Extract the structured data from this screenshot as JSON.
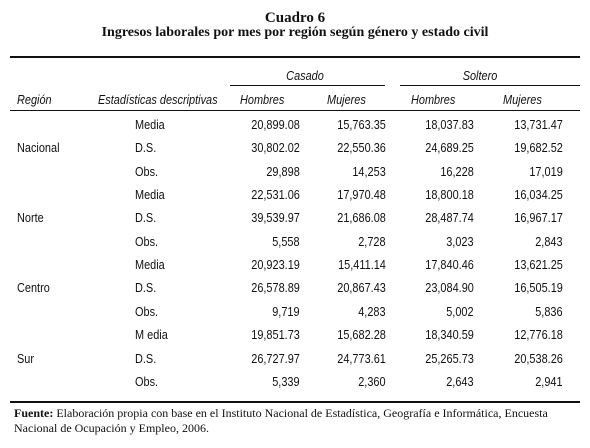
{
  "title": "Cuadro 6",
  "subtitle": "Ingresos laborales por mes por región según género y estado civil",
  "headers": {
    "casado": "Casado",
    "soltero": "Soltero",
    "region": "Región",
    "estadisticas": "Estadísticas descriptivas",
    "hombres_1": "Hombres",
    "mujeres_1": "Mujeres",
    "hombres_2": "Hombres",
    "mujeres_2": "Mujeres"
  },
  "rows": [
    {
      "region": "",
      "stat": "Media",
      "v1": "20,899.08",
      "v2": "15,763.35",
      "v3": "18,037.83",
      "v4": "13,731.47"
    },
    {
      "region": "Nacional",
      "stat": "D.S.",
      "v1": "30,802.02",
      "v2": "22,550.36",
      "v3": "24,689.25",
      "v4": "19,682.52"
    },
    {
      "region": "",
      "stat": "Obs.",
      "v1": "29,898",
      "v2": "14,253",
      "v3": "16,228",
      "v4": "17,019"
    },
    {
      "region": "",
      "stat": "Media",
      "v1": "22,531.06",
      "v2": "17,970.48",
      "v3": "18,800.18",
      "v4": "16,034.25"
    },
    {
      "region": "Norte",
      "stat": "D.S.",
      "v1": "39,539.97",
      "v2": "21,686.08",
      "v3": "28,487.74",
      "v4": "16,967.17"
    },
    {
      "region": "",
      "stat": "Obs.",
      "v1": "5,558",
      "v2": "2,728",
      "v3": "3,023",
      "v4": "2,843"
    },
    {
      "region": "",
      "stat": "Media",
      "v1": "20,923.19",
      "v2": "15,411.14",
      "v3": "17,840.46",
      "v4": "13,621.25"
    },
    {
      "region": "Centro",
      "stat": "D.S.",
      "v1": "26,578.89",
      "v2": "20,867.43",
      "v3": "23,084.90",
      "v4": "16,505.19"
    },
    {
      "region": "",
      "stat": "Obs.",
      "v1": "9,719",
      "v2": "4,283",
      "v3": "5,002",
      "v4": "5,836"
    },
    {
      "region": "",
      "stat": "M edia",
      "v1": "19,851.73",
      "v2": "15,682.28",
      "v3": "18,340.59",
      "v4": "12,776.18"
    },
    {
      "region": "Sur",
      "stat": "D.S.",
      "v1": "26,727.97",
      "v2": "24,773.61",
      "v3": "25,265.73",
      "v4": "20,538.26"
    },
    {
      "region": "",
      "stat": "Obs.",
      "v1": "5,339",
      "v2": "2,360",
      "v3": "2,643",
      "v4": "2,941"
    }
  ],
  "footer": {
    "label": "Fuente:",
    "text": " Elaboración propia con base en el Instituto Nacional de Estadística, Geografía e Informática, Encuesta Nacional de Ocupación y Empleo, 2006."
  }
}
